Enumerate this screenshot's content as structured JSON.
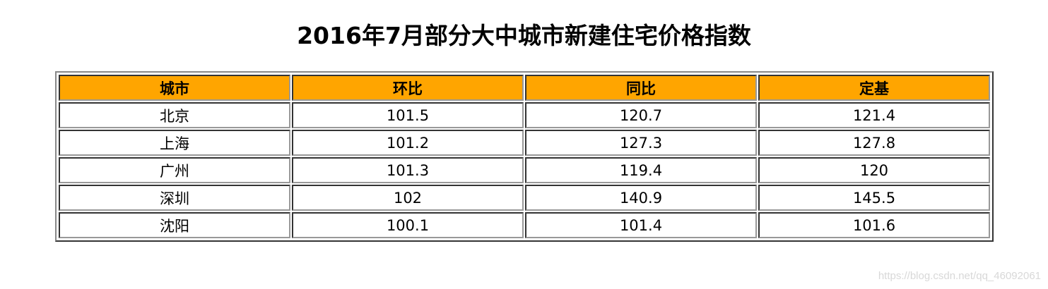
{
  "title": "2016年7月部分大中城市新建住宅价格指数",
  "table": {
    "header_bg": "#FFA500",
    "headers": [
      "城市",
      "环比",
      "同比",
      "定基"
    ],
    "rows": [
      [
        "北京",
        "101.5",
        "120.7",
        "121.4"
      ],
      [
        "上海",
        "101.2",
        "127.3",
        "127.8"
      ],
      [
        "广州",
        "101.3",
        "119.4",
        "120"
      ],
      [
        "深圳",
        "102",
        "140.9",
        "145.5"
      ],
      [
        "沈阳",
        "100.1",
        "101.4",
        "101.6"
      ]
    ]
  },
  "watermark": "https://blog.csdn.net/qq_46092061"
}
